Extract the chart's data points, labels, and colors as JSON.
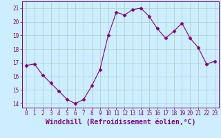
{
  "x": [
    0,
    1,
    2,
    3,
    4,
    5,
    6,
    7,
    8,
    9,
    10,
    11,
    12,
    13,
    14,
    15,
    16,
    17,
    18,
    19,
    20,
    21,
    22,
    23
  ],
  "y": [
    16.8,
    16.9,
    16.1,
    15.5,
    14.9,
    14.3,
    14.0,
    14.3,
    15.3,
    16.5,
    19.0,
    20.7,
    20.5,
    20.9,
    21.0,
    20.4,
    19.5,
    18.8,
    19.3,
    19.9,
    18.8,
    18.1,
    16.9,
    17.1
  ],
  "line_color": "#800080",
  "marker": "D",
  "marker_size": 2.5,
  "bg_color": "#cceeff",
  "grid_color": "#aacccc",
  "xlabel": "Windchill (Refroidissement éolien,°C)",
  "xlabel_fontsize": 7,
  "ylabel_ticks": [
    14,
    15,
    16,
    17,
    18,
    19,
    20,
    21
  ],
  "xticks": [
    0,
    1,
    2,
    3,
    4,
    5,
    6,
    7,
    8,
    9,
    10,
    11,
    12,
    13,
    14,
    15,
    16,
    17,
    18,
    19,
    20,
    21,
    22,
    23
  ],
  "ylim": [
    13.7,
    21.5
  ],
  "xlim": [
    -0.5,
    23.5
  ],
  "tick_color": "#800080",
  "tick_fontsize": 5.5,
  "spine_color": "#800080"
}
